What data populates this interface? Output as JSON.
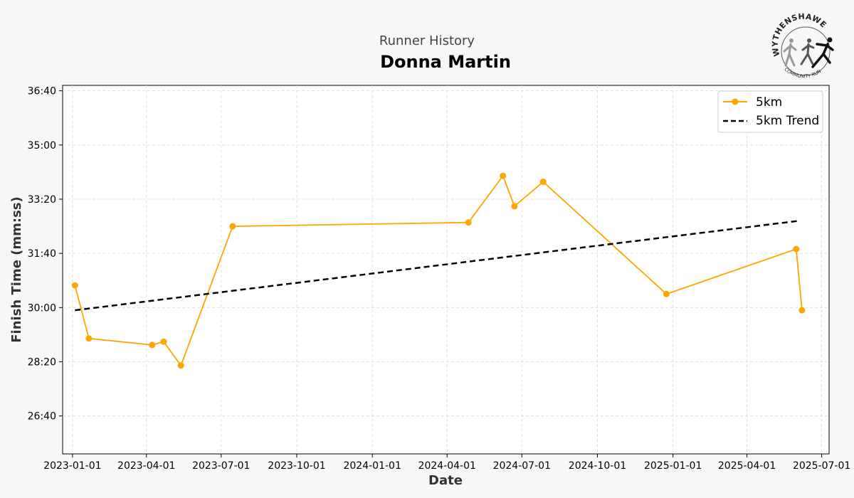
{
  "header": {
    "supertitle": "Runner History",
    "title": "Donna Martin"
  },
  "logo": {
    "name": "WYTHENSHAWE",
    "sub": "COMMUNITY RUN"
  },
  "chart_data": {
    "type": "line",
    "xlabel": "Date",
    "ylabel": "Finish Time (mm:ss)",
    "x_ticks": [
      "2023-01-01",
      "2023-04-01",
      "2023-07-01",
      "2023-10-01",
      "2024-01-01",
      "2024-04-01",
      "2024-07-01",
      "2024-10-01",
      "2025-01-01",
      "2025-04-01",
      "2025-07-01"
    ],
    "y_ticks": [
      "26:40",
      "28:20",
      "30:00",
      "31:40",
      "33:20",
      "35:00",
      "36:40"
    ],
    "xlim": [
      "2022-12-20",
      "2025-07-10"
    ],
    "ylim_seconds": [
      1530,
      2210
    ],
    "grid": true,
    "legend_position": "top-right",
    "series": [
      {
        "name": "5km",
        "color": "#ffa500",
        "marker": "circle",
        "x": [
          "2023-01-04",
          "2023-01-21",
          "2023-04-08",
          "2023-04-22",
          "2023-05-13",
          "2023-07-15",
          "2024-04-27",
          "2024-06-08",
          "2024-06-22",
          "2024-07-27",
          "2024-12-24",
          "2025-05-31",
          "2025-06-07"
        ],
        "y": [
          "30:41",
          "29:03",
          "28:51",
          "28:57",
          "28:13",
          "32:30",
          "32:37",
          "34:03",
          "33:07",
          "33:52",
          "30:25",
          "31:48",
          "29:55"
        ]
      },
      {
        "name": "5km Trend",
        "color": "#000000",
        "style": "dashed",
        "x": [
          "2023-01-04",
          "2025-06-03"
        ],
        "y": [
          "29:55",
          "32:40"
        ]
      }
    ]
  }
}
